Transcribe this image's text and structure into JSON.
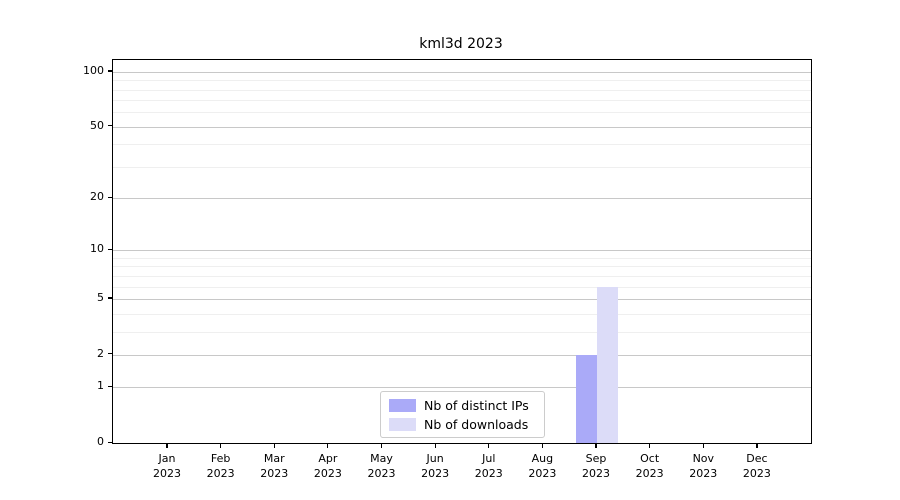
{
  "chart_data": {
    "type": "bar",
    "title": "kml3d 2023",
    "categories": [
      "Jan",
      "Feb",
      "Mar",
      "Apr",
      "May",
      "Jun",
      "Jul",
      "Aug",
      "Sep",
      "Oct",
      "Nov",
      "Dec"
    ],
    "category_year": "2023",
    "series": [
      {
        "name": "Nb of distinct IPs",
        "color": "#aaaaf8",
        "values": [
          0,
          0,
          0,
          0,
          0,
          0,
          0,
          0,
          2,
          0,
          0,
          0
        ]
      },
      {
        "name": "Nb of downloads",
        "color": "#dcdcf8",
        "values": [
          0,
          0,
          0,
          0,
          0,
          0,
          0,
          0,
          6,
          0,
          0,
          0
        ]
      }
    ],
    "y_scale": "log1p",
    "y_axis_top_value": 116,
    "y_ticks": [
      0,
      1,
      2,
      5,
      10,
      20,
      50,
      100
    ],
    "y_minor_gridlines": [
      3,
      4,
      6,
      7,
      8,
      9,
      30,
      40,
      60,
      70,
      80,
      90
    ],
    "grid": true,
    "legend_position": "bottom-center",
    "colors": {
      "major_grid": "#c8c8c8",
      "minor_grid": "#efefef",
      "frame": "#000000",
      "background": "#ffffff"
    }
  }
}
